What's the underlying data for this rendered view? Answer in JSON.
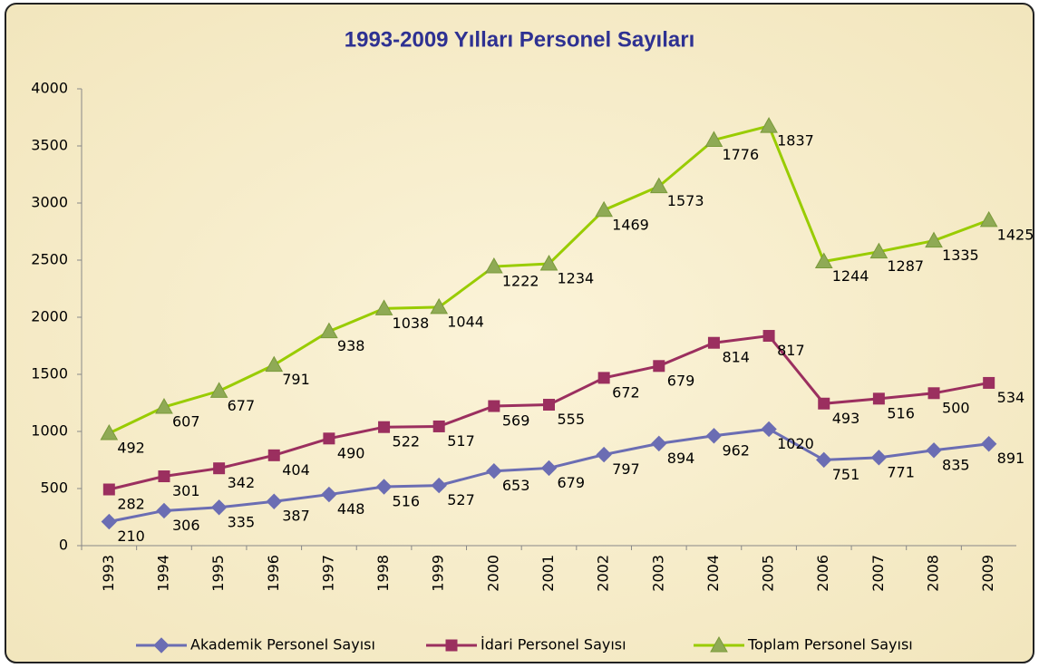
{
  "chart_data": {
    "type": "line",
    "stacked": true,
    "title": "1993-2009 Yılları Personel Sayıları",
    "categories": [
      "1993",
      "1994",
      "1995",
      "1996",
      "1997",
      "1998",
      "1999",
      "2000",
      "2001",
      "2002",
      "2003",
      "2004",
      "2005",
      "2006",
      "2007",
      "2008",
      "2009"
    ],
    "series": [
      {
        "name": "Akademik Personel Sayısı",
        "color": "#6b6db3",
        "marker": "diamond",
        "values": [
          210,
          306,
          335,
          387,
          448,
          516,
          527,
          653,
          679,
          797,
          894,
          962,
          1020,
          751,
          771,
          835,
          891
        ]
      },
      {
        "name": "İdari Personel Sayısı",
        "color": "#9b2f5f",
        "marker": "square",
        "values": [
          282,
          301,
          342,
          404,
          490,
          522,
          517,
          569,
          555,
          672,
          679,
          814,
          817,
          493,
          516,
          500,
          534
        ]
      },
      {
        "name": "Toplam Personel Sayısı",
        "color": "#99cc00",
        "marker": "triangle",
        "values": [
          492,
          607,
          677,
          791,
          938,
          1038,
          1044,
          1222,
          1234,
          1469,
          1573,
          1776,
          1837,
          1244,
          1287,
          1335,
          1425
        ]
      }
    ],
    "ylim": [
      0,
      4000
    ],
    "yticks": [
      0,
      500,
      1000,
      1500,
      2000,
      2500,
      3000,
      3500,
      4000
    ],
    "grid": false
  }
}
